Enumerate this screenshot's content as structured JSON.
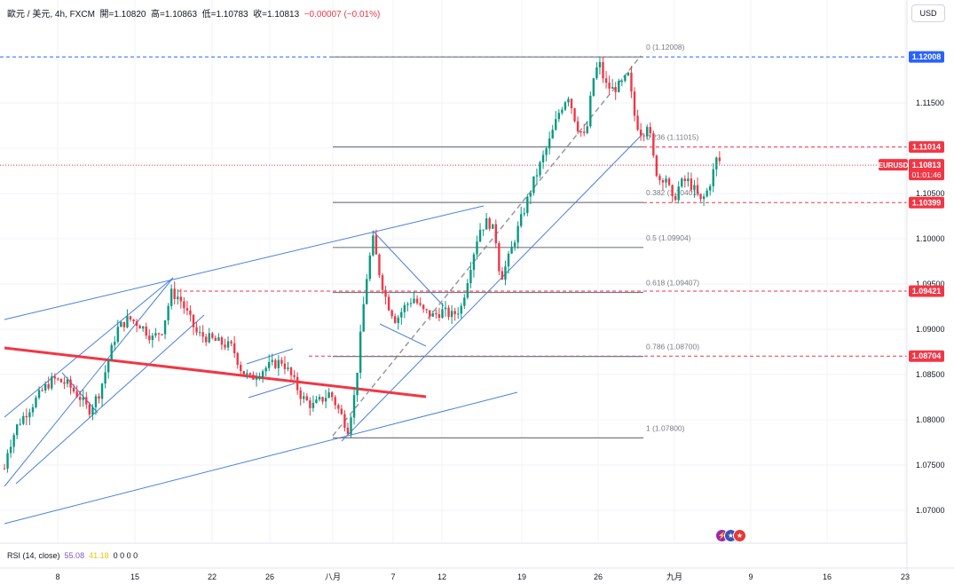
{
  "header": {
    "symbol": "歐元 / 美元, 4h, FXCM",
    "open_label": "開=",
    "open": "1.10820",
    "high_label": "高=",
    "high": "1.10863",
    "low_label": "低=",
    "low": "1.10783",
    "close_label": "收=",
    "close": "1.10813",
    "change": "−0.00007 (−0.01%)"
  },
  "currency_button": "USD",
  "rsi": {
    "label": "RSI (14, close)",
    "v1": "55.08",
    "v2": "41.18",
    "extra": "0 0 0 0"
  },
  "colors": {
    "up": "#089981",
    "down": "#f23645",
    "trendline": "#4a80e0",
    "red_trend": "#f23645",
    "fib": "#787b86",
    "high_line": "#2962ff",
    "current_price_bg": "#f23645"
  },
  "chart_data": {
    "type": "candlestick",
    "timeframe": "4h",
    "x_ticks": [
      "8",
      "15",
      "22",
      "26",
      "八月",
      "7",
      "12",
      "19",
      "26",
      "九月",
      "9",
      "16",
      "23"
    ],
    "y_ticks": [
      "1.11500",
      "1.11000",
      "1.10500",
      "1.10000",
      "1.09500",
      "1.09000",
      "1.08500",
      "1.08000",
      "1.07500",
      "1.07000"
    ],
    "ylim": [
      1.0675,
      1.1225
    ],
    "price_badges": [
      {
        "label": "1.12008",
        "value": 1.12008,
        "color": "#2962ff"
      },
      {
        "label": "1.11014",
        "value": 1.11014,
        "color": "#f23645"
      },
      {
        "label": "1.10399",
        "value": 1.10399,
        "color": "#f23645"
      },
      {
        "label": "1.09421",
        "value": 1.09421,
        "color": "#f23645"
      },
      {
        "label": "1.08704",
        "value": 1.08704,
        "color": "#f23645"
      }
    ],
    "current_price": {
      "symbol": "EURUSD",
      "price": "1.10813",
      "countdown": "01:01:46",
      "value": 1.10813
    },
    "fib_levels": [
      {
        "label": "0 (1.12008)",
        "value": 1.12008
      },
      {
        "label": "0.236 (1.11015)",
        "value": 1.11015
      },
      {
        "label": "0.382 (1.10401)",
        "value": 1.10401
      },
      {
        "label": "0.5 (1.09904)",
        "value": 1.09904
      },
      {
        "label": "0.618 (1.09407)",
        "value": 1.09407
      },
      {
        "label": "0.786 (1.08700)",
        "value": 1.087
      },
      {
        "label": "1 (1.07800)",
        "value": 1.078
      }
    ],
    "price_path": [
      [
        0,
        1.0715
      ],
      [
        8,
        1.0765
      ],
      [
        20,
        1.0795
      ],
      [
        35,
        1.0815
      ],
      [
        50,
        1.0835
      ],
      [
        60,
        1.0845
      ],
      [
        75,
        1.084
      ],
      [
        90,
        1.0825
      ],
      [
        100,
        1.081
      ],
      [
        112,
        1.083
      ],
      [
        122,
        1.0865
      ],
      [
        132,
        1.09
      ],
      [
        145,
        1.0912
      ],
      [
        158,
        1.0905
      ],
      [
        172,
        1.089
      ],
      [
        183,
        1.09
      ],
      [
        193,
        1.094
      ],
      [
        202,
        1.0935
      ],
      [
        212,
        1.0915
      ],
      [
        222,
        1.0895
      ],
      [
        235,
        1.089
      ],
      [
        248,
        1.0885
      ],
      [
        262,
        1.088
      ],
      [
        272,
        1.0855
      ],
      [
        282,
        1.0845
      ],
      [
        295,
        1.0855
      ],
      [
        305,
        1.086
      ],
      [
        318,
        1.0865
      ],
      [
        330,
        1.0845
      ],
      [
        340,
        1.0825
      ],
      [
        352,
        1.0815
      ],
      [
        362,
        1.0822
      ],
      [
        372,
        1.083
      ],
      [
        382,
        1.081
      ],
      [
        392,
        1.079
      ],
      [
        400,
        1.083
      ],
      [
        406,
        1.089
      ],
      [
        412,
        1.095
      ],
      [
        420,
        1.1
      ],
      [
        428,
        1.096
      ],
      [
        436,
        1.093
      ],
      [
        446,
        1.091
      ],
      [
        456,
        1.0925
      ],
      [
        466,
        1.0935
      ],
      [
        476,
        1.092
      ],
      [
        488,
        1.0915
      ],
      [
        498,
        1.092
      ],
      [
        510,
        1.0915
      ],
      [
        520,
        1.0925
      ],
      [
        530,
        1.097
      ],
      [
        540,
        1.101
      ],
      [
        550,
        1.102
      ],
      [
        558,
        1.1005
      ],
      [
        564,
        1.0955
      ],
      [
        572,
        1.0975
      ],
      [
        580,
        1.1
      ],
      [
        590,
        1.103
      ],
      [
        600,
        1.106
      ],
      [
        610,
        1.1085
      ],
      [
        620,
        1.111
      ],
      [
        630,
        1.114
      ],
      [
        640,
        1.116
      ],
      [
        650,
        1.1125
      ],
      [
        660,
        1.111
      ],
      [
        668,
        1.1175
      ],
      [
        675,
        1.1195
      ],
      [
        682,
        1.117
      ],
      [
        690,
        1.1165
      ],
      [
        700,
        1.117
      ],
      [
        708,
        1.118
      ],
      [
        716,
        1.113
      ],
      [
        724,
        1.1115
      ],
      [
        730,
        1.113
      ],
      [
        736,
        1.109
      ],
      [
        742,
        1.1065
      ],
      [
        750,
        1.107
      ],
      [
        758,
        1.104
      ],
      [
        766,
        1.106
      ],
      [
        774,
        1.1065
      ],
      [
        782,
        1.1055
      ],
      [
        790,
        1.104
      ],
      [
        798,
        1.1055
      ],
      [
        804,
        1.1075
      ],
      [
        808,
        1.109
      ],
      [
        814,
        1.1081
      ]
    ]
  },
  "event_icons": [
    "lightning-icon",
    "us-flag-icon",
    "us-flag-icon"
  ]
}
